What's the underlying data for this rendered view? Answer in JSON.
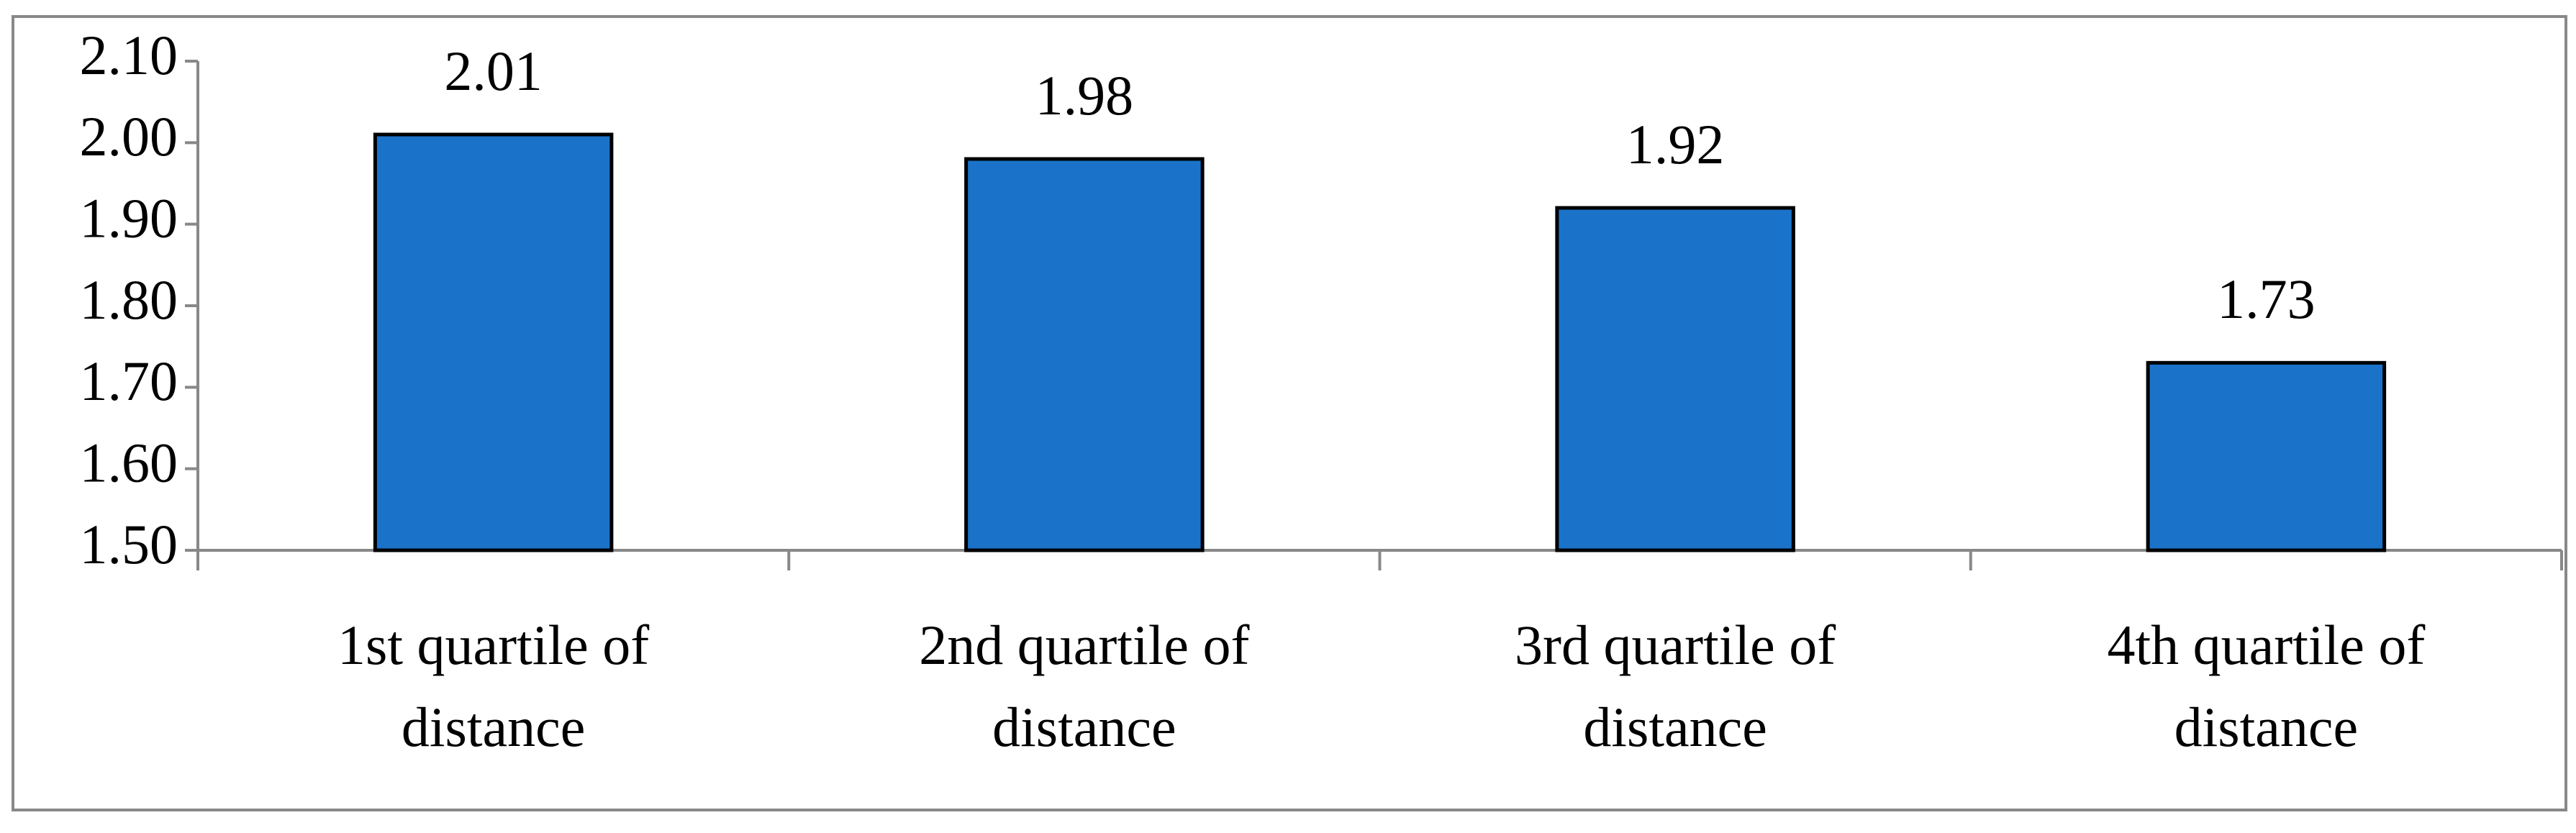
{
  "chart_data": {
    "type": "bar",
    "categories": [
      "1st quartile of distance",
      "2nd quartile of distance",
      "3rd quartile of distance",
      "4th quartile of distance"
    ],
    "values": [
      2.01,
      1.98,
      1.92,
      1.73
    ],
    "color": "#1a73c9",
    "ylim": [
      1.5,
      2.1
    ],
    "yticks": [
      {
        "value": 1.5,
        "label": "1.50"
      },
      {
        "value": 1.6,
        "label": "1.60"
      },
      {
        "value": 1.7,
        "label": "1.70"
      },
      {
        "value": 1.8,
        "label": "1.80"
      },
      {
        "value": 1.9,
        "label": "1.90"
      },
      {
        "value": 2.0,
        "label": "2.00"
      },
      {
        "value": 2.1,
        "label": "2.10"
      }
    ],
    "grid": false
  }
}
